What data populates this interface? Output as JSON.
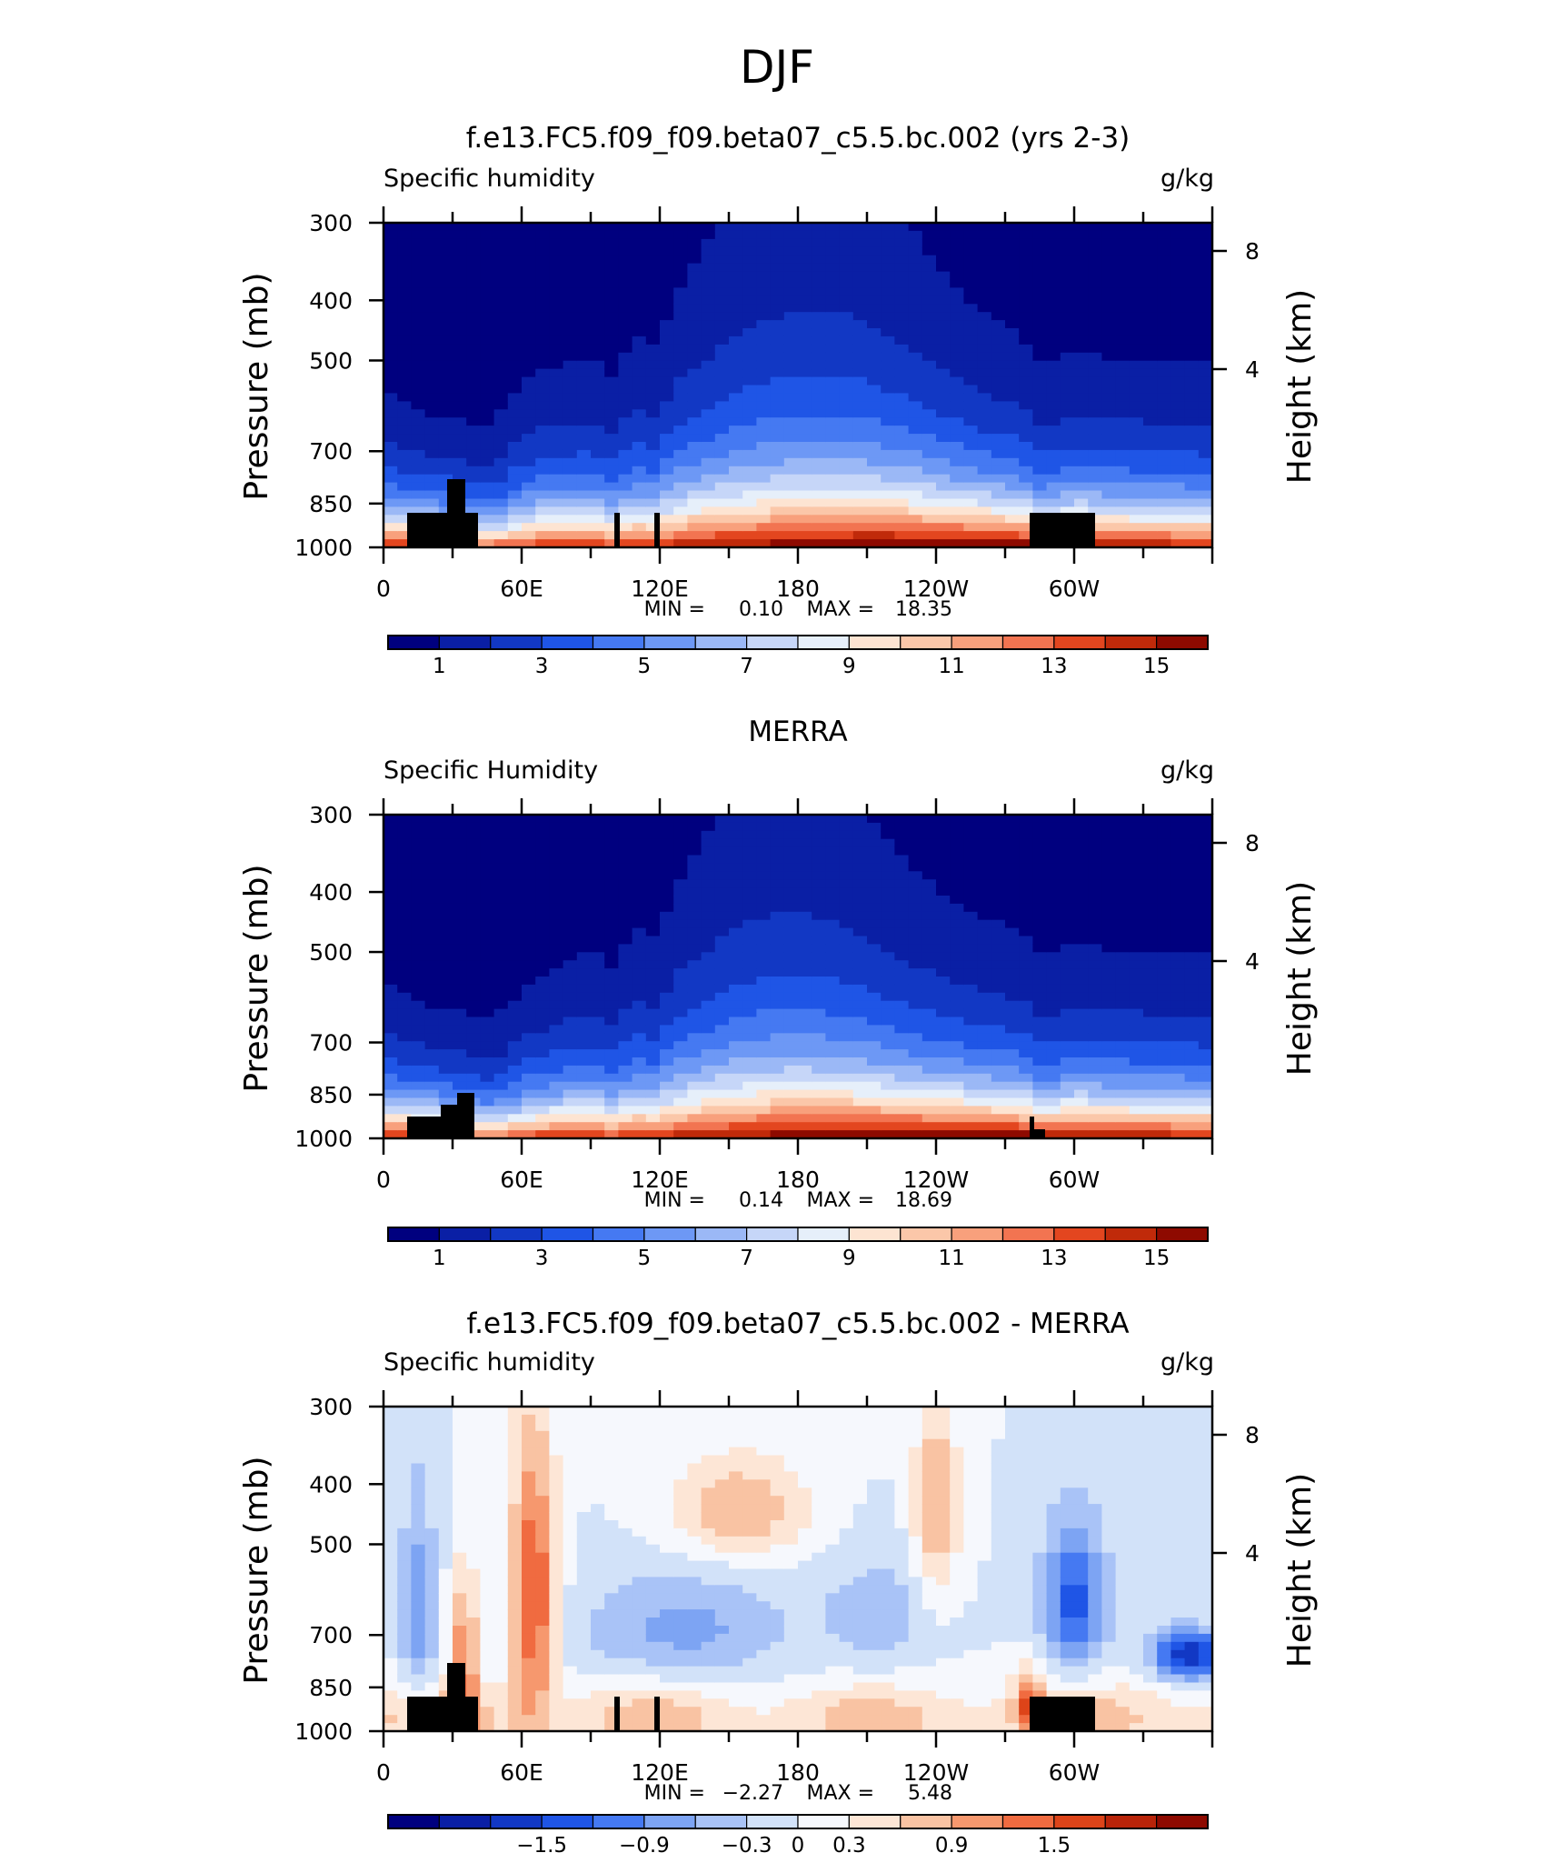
{
  "figure_title": "DJF",
  "chart_data": [
    {
      "type": "heatmap",
      "title": "f.e13.FC5.f09_f09.beta07_c5.5.bc.002 (yrs 2-3)",
      "left_label": "Specific humidity",
      "right_label": "g/kg",
      "ylabel": "Pressure (mb)",
      "ylabel_right": "Height (km)",
      "yticks": [
        "300",
        "400",
        "500",
        "700",
        "850",
        "1000"
      ],
      "yticks_right": [
        "8",
        "4"
      ],
      "xticks": [
        "0",
        "60E",
        "120E",
        "180",
        "120W",
        "60W"
      ],
      "ylim": [
        1000,
        300
      ],
      "stats": {
        "min_label": "MIN =",
        "min": "0.10",
        "max_label": "MAX =",
        "max": "18.35"
      },
      "colorbar": {
        "labels": [
          "1",
          "3",
          "5",
          "7",
          "9",
          "11",
          "13",
          "15"
        ],
        "range": [
          0,
          16
        ]
      },
      "field": "model"
    },
    {
      "type": "heatmap",
      "title": "MERRA",
      "left_label": "Specific Humidity",
      "right_label": "g/kg",
      "ylabel": "Pressure (mb)",
      "ylabel_right": "Height (km)",
      "yticks": [
        "300",
        "400",
        "500",
        "700",
        "850",
        "1000"
      ],
      "yticks_right": [
        "8",
        "4"
      ],
      "xticks": [
        "0",
        "60E",
        "120E",
        "180",
        "120W",
        "60W"
      ],
      "ylim": [
        1000,
        300
      ],
      "stats": {
        "min_label": "MIN =",
        "min": "0.14",
        "max_label": "MAX =",
        "max": "18.69"
      },
      "colorbar": {
        "labels": [
          "1",
          "3",
          "5",
          "7",
          "9",
          "11",
          "13",
          "15"
        ],
        "range": [
          0,
          16
        ]
      },
      "field": "obs"
    },
    {
      "type": "heatmap",
      "title": "f.e13.FC5.f09_f09.beta07_c5.5.bc.002 - MERRA",
      "left_label": "Specific humidity",
      "right_label": "g/kg",
      "ylabel": "Pressure (mb)",
      "ylabel_right": "Height (km)",
      "yticks": [
        "300",
        "400",
        "500",
        "700",
        "850",
        "1000"
      ],
      "yticks_right": [
        "8",
        "4"
      ],
      "xticks": [
        "0",
        "60E",
        "120E",
        "180",
        "120W",
        "60W"
      ],
      "ylim": [
        1000,
        300
      ],
      "stats": {
        "min_label": "MIN =",
        "min": "−2.27",
        "max_label": "MAX =",
        "max": "5.48"
      },
      "colorbar": {
        "labels": [
          "−1.5",
          "−0.9",
          "−0.3",
          "0",
          "0.3",
          "0.9",
          "1.5"
        ],
        "range": [
          -2.1,
          2.1
        ]
      },
      "field": "diff"
    }
  ],
  "colors": {
    "palette16": [
      "#00007f",
      "#0a1fa5",
      "#1238c4",
      "#1f55e6",
      "#4579f2",
      "#6d98f5",
      "#9bb8f6",
      "#c6d6f8",
      "#e6effa",
      "#fde4d2",
      "#fbc7a9",
      "#f8a07c",
      "#f27451",
      "#e3461f",
      "#c02a0a",
      "#8e0a00"
    ],
    "palette_diff": [
      "#00007f",
      "#0a1fa5",
      "#1238c4",
      "#1f55e6",
      "#4579f2",
      "#7da4f3",
      "#a9c3f7",
      "#d2e2f9",
      "#f6f8fd",
      "#fde6d6",
      "#f9c3a3",
      "#f6986e",
      "#f06b40",
      "#dd4419",
      "#b92409",
      "#8e0a00"
    ],
    "terrain": "#000000"
  }
}
